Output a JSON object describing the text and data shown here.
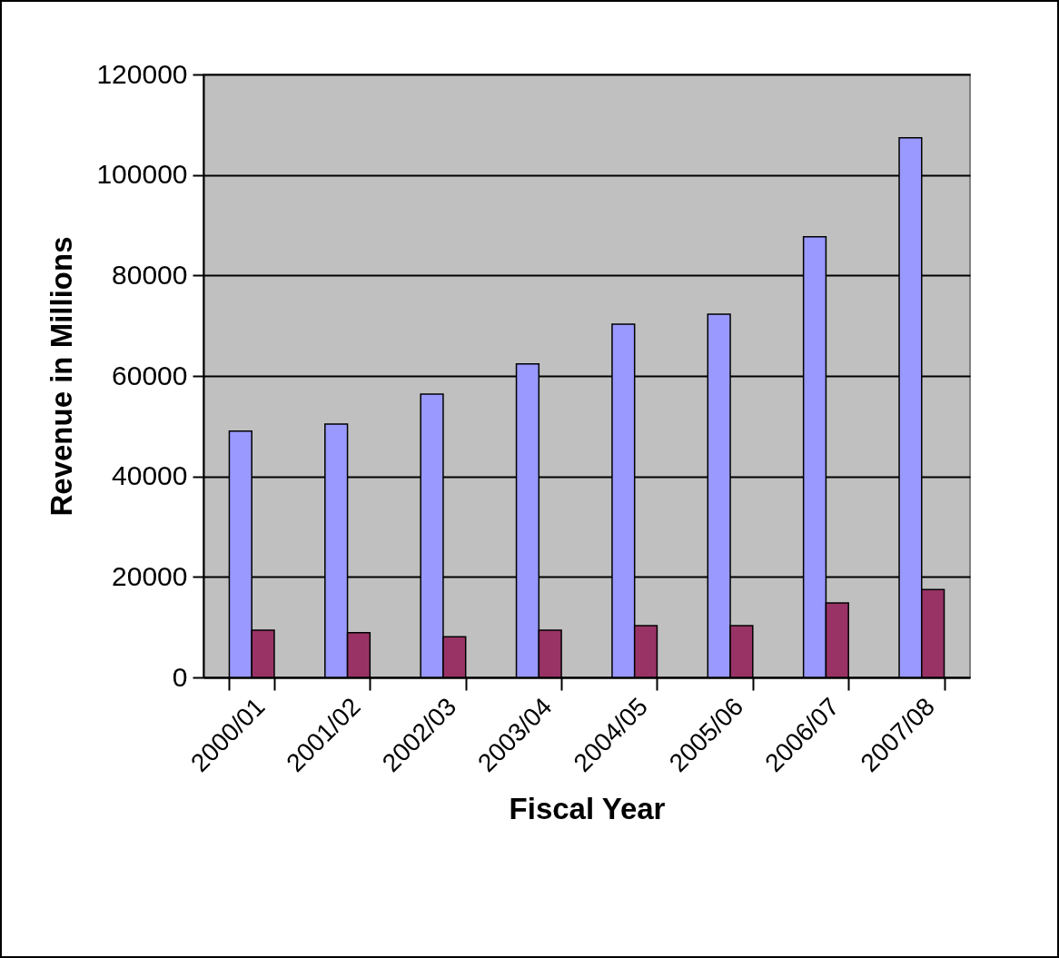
{
  "chart_data": {
    "type": "bar",
    "xlabel": "Fiscal Year",
    "ylabel": "Revenue in Millions",
    "categories": [
      "2000/01",
      "2001/02",
      "2002/03",
      "2003/04",
      "2004/05",
      "2005/06",
      "2006/07",
      "2007/08"
    ],
    "series": [
      {
        "color": "#9999ff",
        "values": [
          49000,
          50400,
          56400,
          62400,
          70300,
          72300,
          87700,
          107400
        ]
      },
      {
        "color": "#993366",
        "values": [
          9400,
          8900,
          8100,
          9400,
          10300,
          10300,
          14800,
          17500
        ]
      }
    ],
    "ylim": [
      0,
      120000
    ],
    "yticks": [
      0,
      20000,
      40000,
      60000,
      80000,
      100000,
      120000
    ],
    "grid": "y",
    "legend": false
  }
}
